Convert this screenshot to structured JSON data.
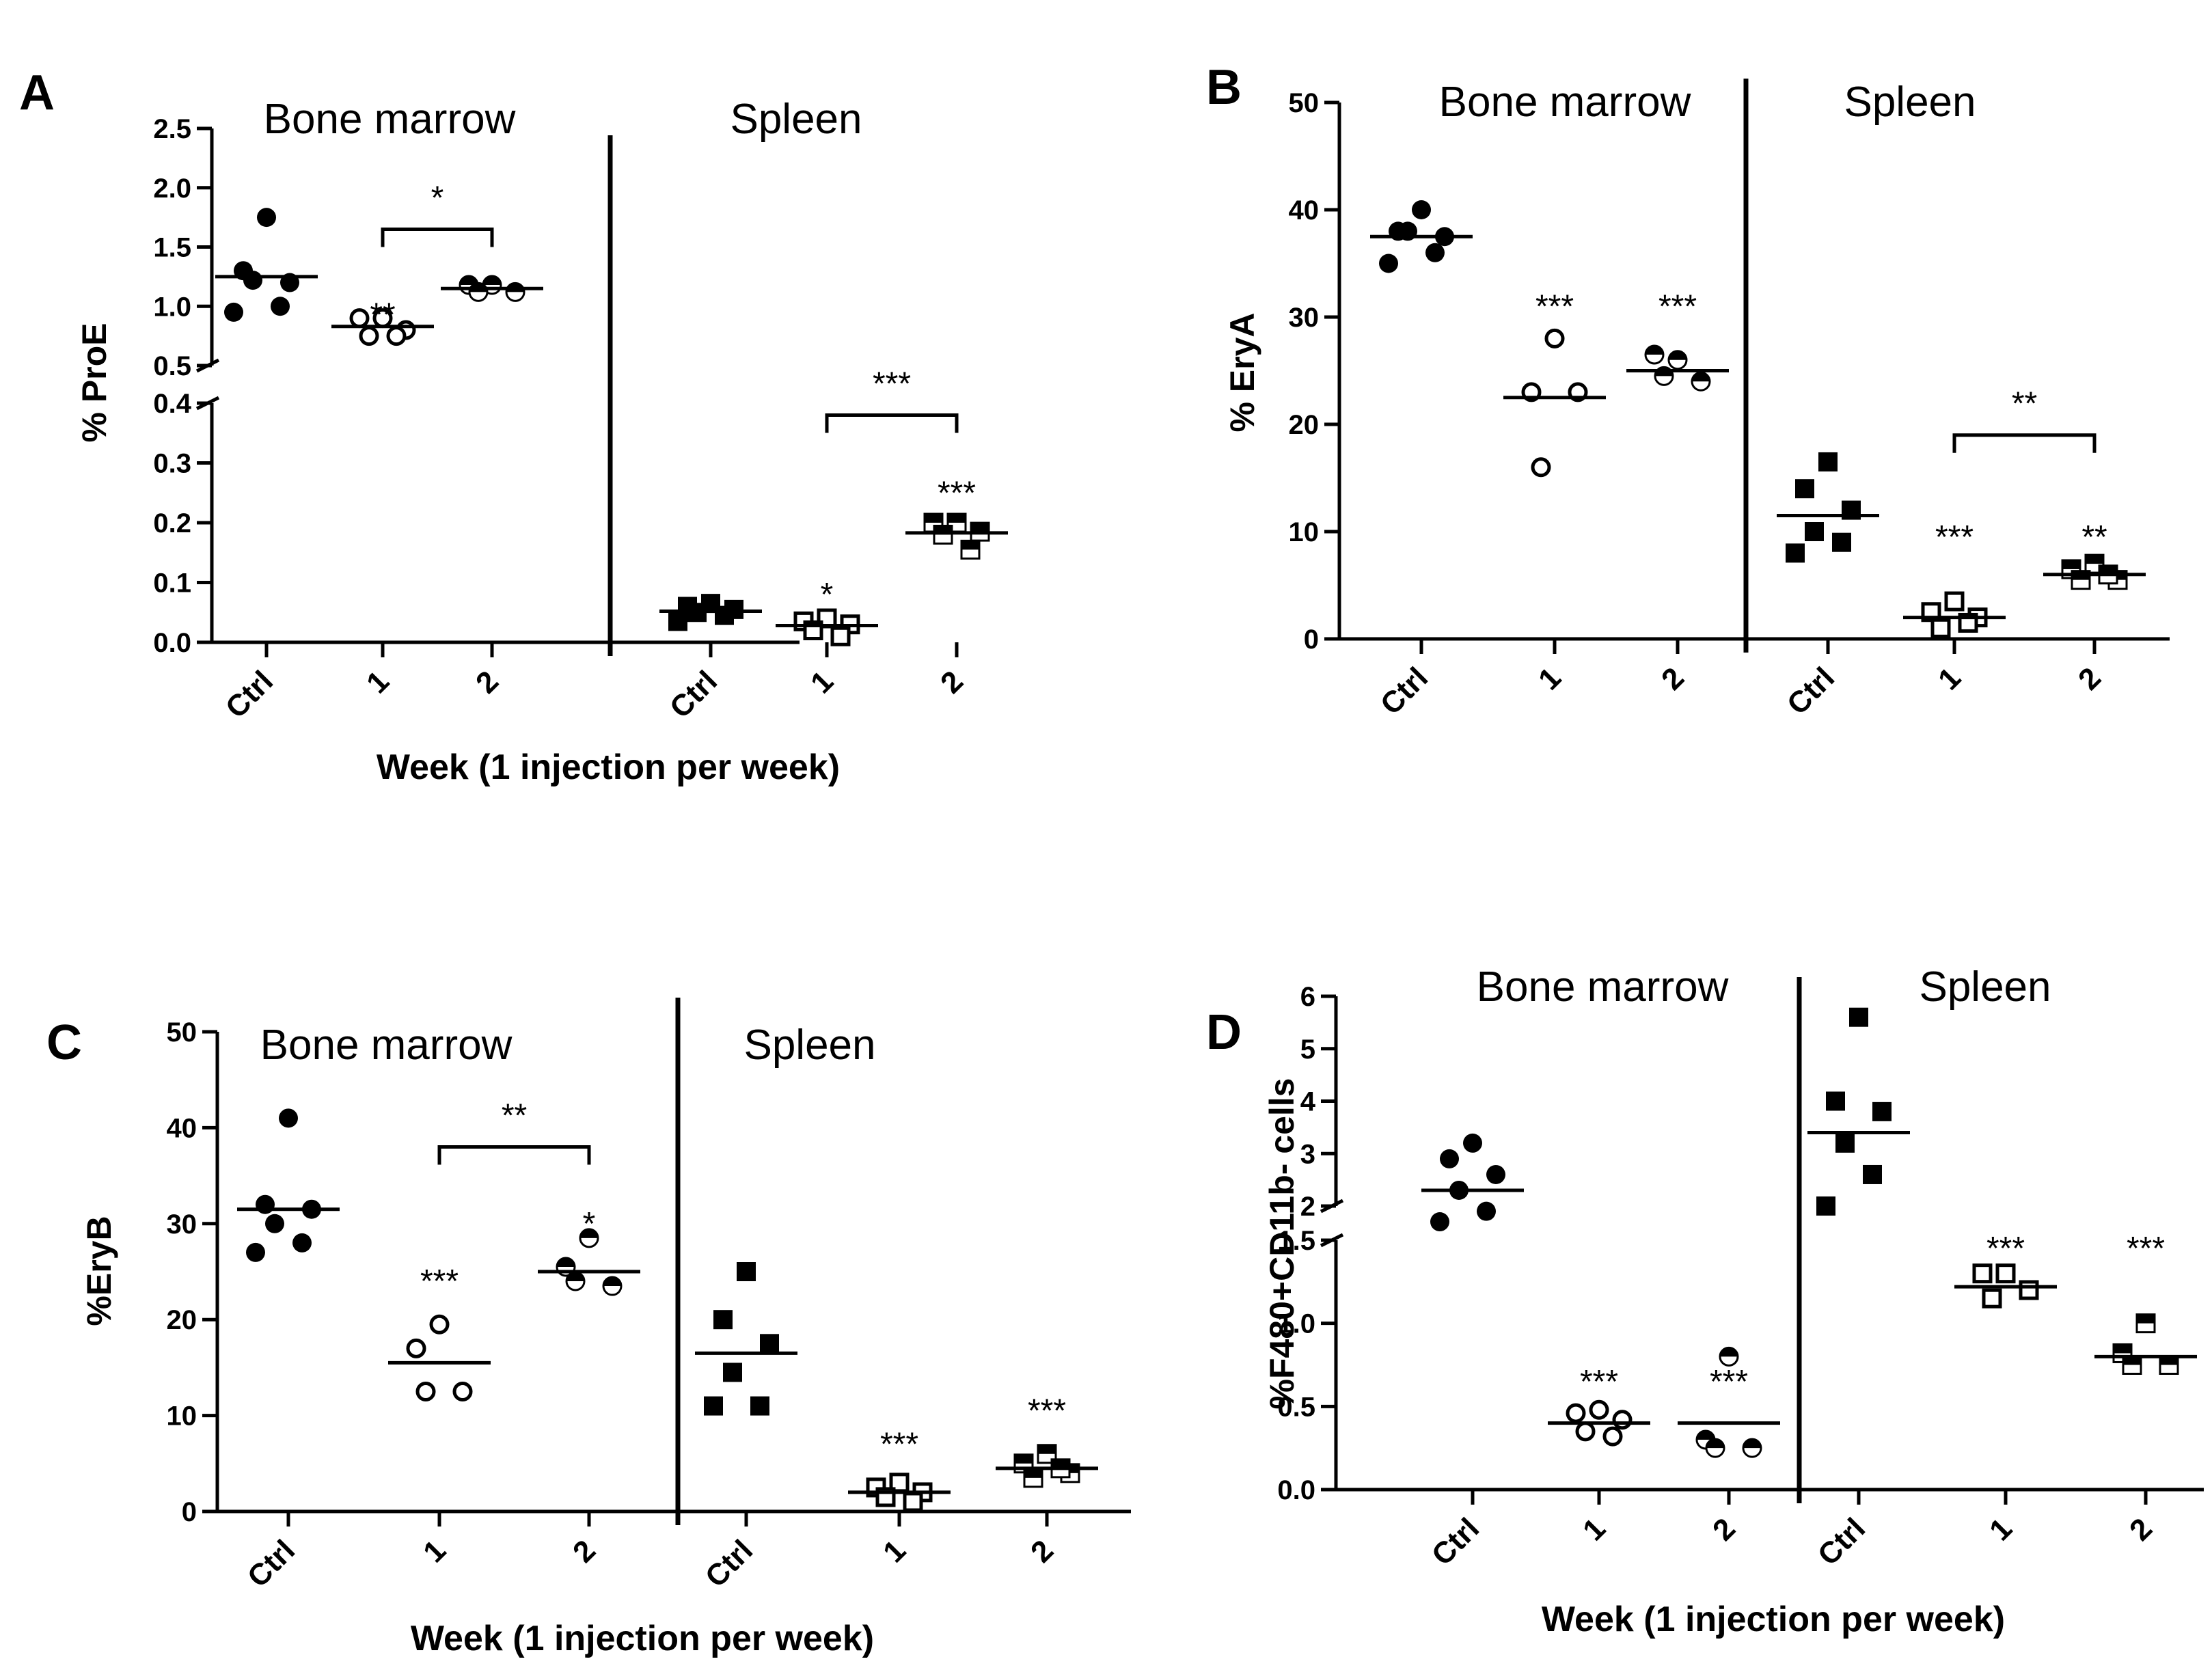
{
  "chart_data": [
    {
      "type": "scatter",
      "panel_label": "A",
      "ylabel": "% ProE",
      "xlabel": "Week (1 injection per week)",
      "groups": [
        "Bone marrow",
        "Spleen"
      ],
      "categories": [
        "Ctrl",
        "1",
        "2",
        "Ctrl",
        "1",
        "2"
      ],
      "y_axis": "broken",
      "ylim_lower": [
        0,
        0.4
      ],
      "ylim_upper": [
        0.5,
        2.5
      ],
      "yticks_lower": [
        "0.0",
        "0.1",
        "0.2",
        "0.3",
        "0.4"
      ],
      "yticks_upper": [
        "0.5",
        "1.0",
        "1.5",
        "2.0",
        "2.5"
      ],
      "series": [
        {
          "group": "Bone marrow",
          "category": "Ctrl",
          "marker": "filled-circle",
          "mean": 1.25,
          "points": [
            1.75,
            1.3,
            1.2,
            1.22,
            1.0,
            0.95
          ]
        },
        {
          "group": "Bone marrow",
          "category": "1",
          "marker": "open-circle",
          "mean": 0.83,
          "points": [
            0.9,
            0.9,
            0.8,
            0.75,
            0.75
          ]
        },
        {
          "group": "Bone marrow",
          "category": "2",
          "marker": "half-circle",
          "mean": 1.15,
          "points": [
            1.18,
            1.18,
            1.12,
            1.12
          ]
        },
        {
          "group": "Spleen",
          "category": "Ctrl",
          "marker": "filled-square",
          "mean": 0.052,
          "points": [
            0.065,
            0.06,
            0.055,
            0.05,
            0.045,
            0.035
          ]
        },
        {
          "group": "Spleen",
          "category": "1",
          "marker": "open-square",
          "mean": 0.028,
          "points": [
            0.04,
            0.035,
            0.03,
            0.02,
            0.01
          ]
        },
        {
          "group": "Spleen",
          "category": "2",
          "marker": "half-square",
          "mean": 0.183,
          "points": [
            0.2,
            0.2,
            0.185,
            0.18,
            0.155
          ]
        }
      ],
      "stars": [
        {
          "category_index": 1,
          "y": 0.93,
          "text": "**"
        },
        {
          "category_index": 4,
          "y": 0.08,
          "text": "*"
        },
        {
          "category_index": 5,
          "y": 0.25,
          "text": "***"
        }
      ],
      "brackets": [
        {
          "from": 1,
          "to": 2,
          "y": 1.65,
          "text": "*"
        },
        {
          "from": 4,
          "to": 5,
          "y": 0.38,
          "text": "***"
        }
      ]
    },
    {
      "type": "scatter",
      "panel_label": "B",
      "ylabel": "% EryA",
      "xlabel": "",
      "groups": [
        "Bone marrow",
        "Spleen"
      ],
      "categories": [
        "Ctrl",
        "1",
        "2",
        "Ctrl",
        "1",
        "2"
      ],
      "ylim": [
        0,
        50
      ],
      "yticks": [
        "0",
        "10",
        "20",
        "30",
        "40",
        "50"
      ],
      "series": [
        {
          "group": "Bone marrow",
          "category": "Ctrl",
          "marker": "filled-circle",
          "mean": 37.5,
          "points": [
            40,
            38,
            37.5,
            38,
            36,
            35
          ]
        },
        {
          "group": "Bone marrow",
          "category": "1",
          "marker": "open-circle",
          "mean": 22.5,
          "points": [
            28,
            23,
            23,
            16
          ]
        },
        {
          "group": "Bone marrow",
          "category": "2",
          "marker": "half-circle",
          "mean": 25,
          "points": [
            26,
            26.5,
            24,
            24.5
          ]
        },
        {
          "group": "Spleen",
          "category": "Ctrl",
          "marker": "filled-square",
          "mean": 11.5,
          "points": [
            16.5,
            14,
            12,
            10,
            9,
            8
          ]
        },
        {
          "group": "Spleen",
          "category": "1",
          "marker": "open-square",
          "mean": 2,
          "points": [
            3.5,
            2.5,
            2,
            1,
            1.5
          ]
        },
        {
          "group": "Spleen",
          "category": "2",
          "marker": "half-square",
          "mean": 6,
          "points": [
            7,
            6.5,
            5.5,
            5.5,
            6
          ]
        }
      ],
      "stars": [
        {
          "category_index": 1,
          "y": 31,
          "text": "***"
        },
        {
          "category_index": 2,
          "y": 31,
          "text": "***"
        },
        {
          "category_index": 4,
          "y": 9.5,
          "text": "***"
        },
        {
          "category_index": 5,
          "y": 9.5,
          "text": "**"
        }
      ],
      "brackets": [
        {
          "from": 4,
          "to": 5,
          "y": 19,
          "text": "**"
        }
      ]
    },
    {
      "type": "scatter",
      "panel_label": "C",
      "ylabel": "%EryB",
      "xlabel": "Week (1 injection per week)",
      "groups": [
        "Bone marrow",
        "Spleen"
      ],
      "categories": [
        "Ctrl",
        "1",
        "2",
        "Ctrl",
        "1",
        "2"
      ],
      "ylim": [
        0,
        50
      ],
      "yticks": [
        "0",
        "10",
        "20",
        "30",
        "40",
        "50"
      ],
      "series": [
        {
          "group": "Bone marrow",
          "category": "Ctrl",
          "marker": "filled-circle",
          "mean": 31.5,
          "points": [
            41,
            32,
            31.5,
            30,
            28,
            27
          ]
        },
        {
          "group": "Bone marrow",
          "category": "1",
          "marker": "open-circle",
          "mean": 15.5,
          "points": [
            19.5,
            17,
            12.5,
            12.5
          ]
        },
        {
          "group": "Bone marrow",
          "category": "2",
          "marker": "half-circle",
          "mean": 25,
          "points": [
            28.5,
            25.5,
            23.5,
            24
          ]
        },
        {
          "group": "Spleen",
          "category": "Ctrl",
          "marker": "filled-square",
          "mean": 16.5,
          "points": [
            25,
            20,
            17.5,
            14.5,
            11,
            11
          ]
        },
        {
          "group": "Spleen",
          "category": "1",
          "marker": "open-square",
          "mean": 2,
          "points": [
            3,
            2.5,
            2,
            1.5,
            1
          ]
        },
        {
          "group": "Spleen",
          "category": "2",
          "marker": "half-square",
          "mean": 4.5,
          "points": [
            6,
            5,
            4,
            3.5,
            4.5
          ]
        }
      ],
      "stars": [
        {
          "category_index": 1,
          "y": 24,
          "text": "***"
        },
        {
          "category_index": 2,
          "y": 30,
          "text": "*"
        },
        {
          "category_index": 4,
          "y": 7,
          "text": "***"
        },
        {
          "category_index": 5,
          "y": 10.5,
          "text": "***"
        }
      ],
      "brackets": [
        {
          "from": 1,
          "to": 2,
          "y": 38,
          "text": "**"
        }
      ]
    },
    {
      "type": "scatter",
      "panel_label": "D",
      "ylabel": "%F480+CD11b- cells",
      "xlabel": "Week (1 injection per week)",
      "groups": [
        "Bone marrow",
        "Spleen"
      ],
      "categories": [
        "Ctrl",
        "1",
        "2",
        "Ctrl",
        "1",
        "2"
      ],
      "y_axis": "broken",
      "ylim_lower": [
        0,
        1.5
      ],
      "ylim_upper": [
        2,
        6
      ],
      "yticks_lower": [
        "0.0",
        "0.5",
        "1.0",
        "1.5"
      ],
      "yticks_upper": [
        "2",
        "3",
        "4",
        "5",
        "6"
      ],
      "series": [
        {
          "group": "Bone marrow",
          "category": "Ctrl",
          "marker": "filled-circle",
          "mean": 2.3,
          "points": [
            3.2,
            2.9,
            2.6,
            2.3,
            1.9,
            1.7
          ]
        },
        {
          "group": "Bone marrow",
          "category": "1",
          "marker": "open-circle",
          "mean": 0.4,
          "points": [
            0.48,
            0.46,
            0.42,
            0.35,
            0.32
          ]
        },
        {
          "group": "Bone marrow",
          "category": "2",
          "marker": "half-circle",
          "mean": 0.4,
          "points": [
            0.8,
            0.3,
            0.25,
            0.25
          ]
        },
        {
          "group": "Spleen",
          "category": "Ctrl",
          "marker": "filled-square",
          "mean": 3.4,
          "points": [
            5.6,
            4.0,
            3.8,
            3.2,
            2.6,
            2.0
          ]
        },
        {
          "group": "Spleen",
          "category": "1",
          "marker": "open-square",
          "mean": 1.22,
          "points": [
            1.3,
            1.3,
            1.2,
            1.15
          ]
        },
        {
          "group": "Spleen",
          "category": "2",
          "marker": "half-square",
          "mean": 0.8,
          "points": [
            1.0,
            0.82,
            0.75,
            0.75
          ]
        }
      ],
      "stars": [
        {
          "category_index": 1,
          "y": 0.65,
          "text": "***"
        },
        {
          "category_index": 2,
          "y": 0.65,
          "text": "***"
        },
        {
          "category_index": 4,
          "y": 1.45,
          "text": "***"
        },
        {
          "category_index": 5,
          "y": 1.45,
          "text": "***"
        }
      ],
      "brackets": []
    }
  ]
}
